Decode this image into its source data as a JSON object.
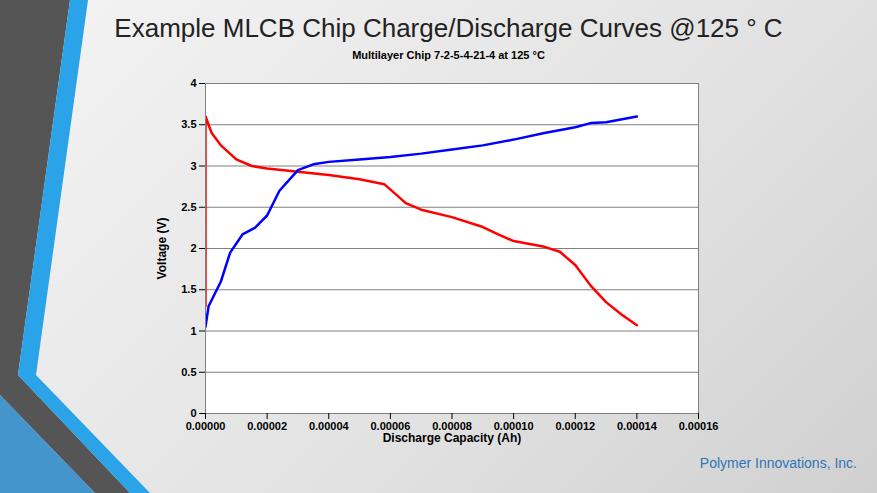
{
  "chart_data": {
    "type": "line",
    "title": "Example MLCB Chip Charge/Discharge Curves @125 ° C",
    "subtitle": "Multilayer Chip 7-2-5-4-21-4 at 125 °C",
    "caption": "Polymer Innovations, Inc.",
    "x_label": "Discharge Capacity (Ah)",
    "y_label": "Voltage (V)",
    "series": [
      {
        "color": "#ff0000",
        "x": [
          0,
          0,
          2e-06,
          5e-06,
          1e-05,
          1.5e-05,
          2e-05,
          3e-05,
          4e-05,
          5e-05,
          5.8e-05,
          6.2e-05,
          6.5e-05,
          7e-05,
          8e-05,
          9e-05,
          9.5e-05,
          0.0001,
          0.00011,
          0.000115,
          0.00012,
          0.000125,
          0.00013,
          0.000135,
          0.00014
        ],
        "values": [
          1.3,
          3.6,
          3.4,
          3.25,
          3.08,
          3.0,
          2.97,
          2.93,
          2.89,
          2.84,
          2.78,
          2.65,
          2.55,
          2.47,
          2.38,
          2.26,
          2.17,
          2.09,
          2.02,
          1.96,
          1.8,
          1.55,
          1.35,
          1.2,
          1.07
        ]
      },
      {
        "color": "#0000ff",
        "x": [
          0,
          1e-06,
          5e-06,
          8e-06,
          1.2e-05,
          1.6e-05,
          2e-05,
          2.4e-05,
          3e-05,
          3.5e-05,
          4e-05,
          5e-05,
          6e-05,
          7e-05,
          8e-05,
          9e-05,
          0.0001,
          0.00011,
          0.00012,
          0.000125,
          0.00013,
          0.00014
        ],
        "values": [
          1.05,
          1.3,
          1.6,
          1.95,
          2.17,
          2.25,
          2.4,
          2.7,
          2.95,
          3.02,
          3.05,
          3.08,
          3.11,
          3.15,
          3.2,
          3.25,
          3.32,
          3.4,
          3.47,
          3.52,
          3.53,
          3.6
        ]
      }
    ],
    "xlim": [
      0,
      0.00016
    ],
    "xticks": [
      {
        "value": 0,
        "label": "0.00000"
      },
      {
        "value": 2e-05,
        "label": "0.00002"
      },
      {
        "value": 4e-05,
        "label": "0.00004"
      },
      {
        "value": 6e-05,
        "label": "0.00006"
      },
      {
        "value": 8e-05,
        "label": "0.00008"
      },
      {
        "value": 0.0001,
        "label": "0.00010"
      },
      {
        "value": 0.00012,
        "label": "0.00012"
      },
      {
        "value": 0.00014,
        "label": "0.00014"
      },
      {
        "value": 0.00016,
        "label": "0.00016"
      }
    ],
    "ylim": [
      0,
      4
    ],
    "yticks": [
      0,
      0.5,
      1,
      1.5,
      2,
      2.5,
      3,
      3.5,
      4
    ],
    "grid": true
  }
}
